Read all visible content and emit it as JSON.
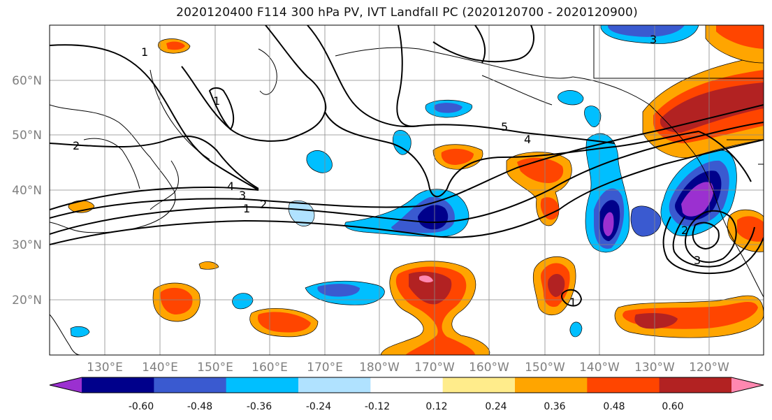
{
  "title": "2020120400 F114 300 hPa PV, IVT Landfall PC (2020120700 - 2020120900)",
  "map": {
    "lat_labels": [
      "60°N",
      "50°N",
      "40°N",
      "30°N",
      "20°N"
    ],
    "lon_labels": [
      "130°E",
      "140°E",
      "150°E",
      "160°E",
      "170°E",
      "180°W",
      "170°W",
      "160°W",
      "150°W",
      "140°W",
      "130°W",
      "120°W"
    ],
    "contour_labels": [
      "1",
      "2",
      "3",
      "4",
      "5",
      "4",
      "2",
      "1",
      "3",
      "1",
      "2",
      "3",
      "1"
    ]
  },
  "colorbar": {
    "tick_labels": [
      "-0.60",
      "-0.48",
      "-0.36",
      "-0.24",
      "-0.12",
      "0.12",
      "0.24",
      "0.36",
      "0.48",
      "0.60"
    ],
    "colors": [
      "#9b30d0",
      "#00008b",
      "#3a5ad0",
      "#00bfff",
      "#b0e2ff",
      "#ffffff",
      "#ffec8b",
      "#ffa500",
      "#ff4500",
      "#b22222",
      "#ff88b0"
    ]
  }
}
